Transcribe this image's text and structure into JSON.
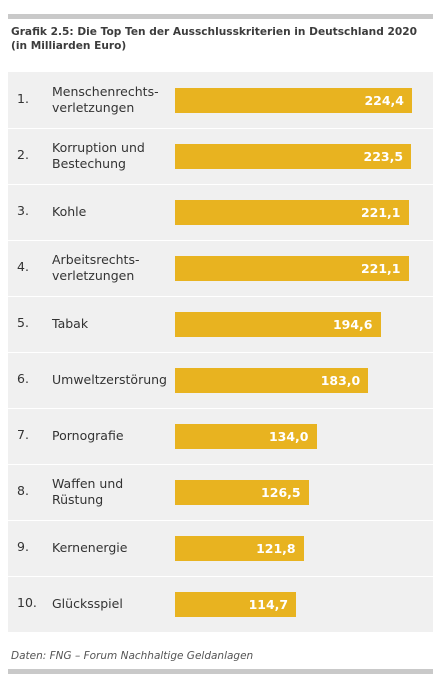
{
  "title_line1": "Grafik 2.5: Die Top Ten der Ausschlusskriterien in Deutschland 2020",
  "title_line2": "(in Milliarden Euro)",
  "source": "Daten: FNG – Forum Nachhaltige Geldanlagen",
  "colors": {
    "bar": "#e8b320",
    "panel": "#f0f0f0",
    "rule": "#c9c9c9"
  },
  "chart_data": {
    "type": "bar",
    "orientation": "horizontal",
    "title": "Grafik 2.5: Die Top Ten der Ausschlusskriterien in Deutschland 2020",
    "subtitle": "(in Milliarden Euro)",
    "ranks": [
      "1.",
      "2.",
      "3.",
      "4.",
      "5.",
      "6.",
      "7.",
      "8.",
      "9.",
      "10."
    ],
    "categories": [
      [
        "Menschenrechts-",
        "verletzungen"
      ],
      [
        "Korruption und",
        "Bestechung"
      ],
      [
        "Kohle"
      ],
      [
        "Arbeitsrechts-",
        "verletzungen"
      ],
      [
        "Tabak"
      ],
      [
        "Umweltzerstörung"
      ],
      [
        "Pornografie"
      ],
      [
        "Waffen und",
        "Rüstung"
      ],
      [
        "Kernenergie"
      ],
      [
        "Glücksspiel"
      ]
    ],
    "values": [
      224.4,
      223.5,
      221.1,
      221.1,
      194.6,
      183.0,
      134.0,
      126.5,
      121.8,
      114.7
    ],
    "value_labels": [
      "224,4",
      "223,5",
      "221,1",
      "221,1",
      "194,6",
      "183,0",
      "134,0",
      "126,5",
      "121,8",
      "114,7"
    ],
    "xlim": [
      0,
      224.4
    ],
    "grid": false,
    "source": "Daten: FNG – Forum Nachhaltige Geldanlagen"
  }
}
